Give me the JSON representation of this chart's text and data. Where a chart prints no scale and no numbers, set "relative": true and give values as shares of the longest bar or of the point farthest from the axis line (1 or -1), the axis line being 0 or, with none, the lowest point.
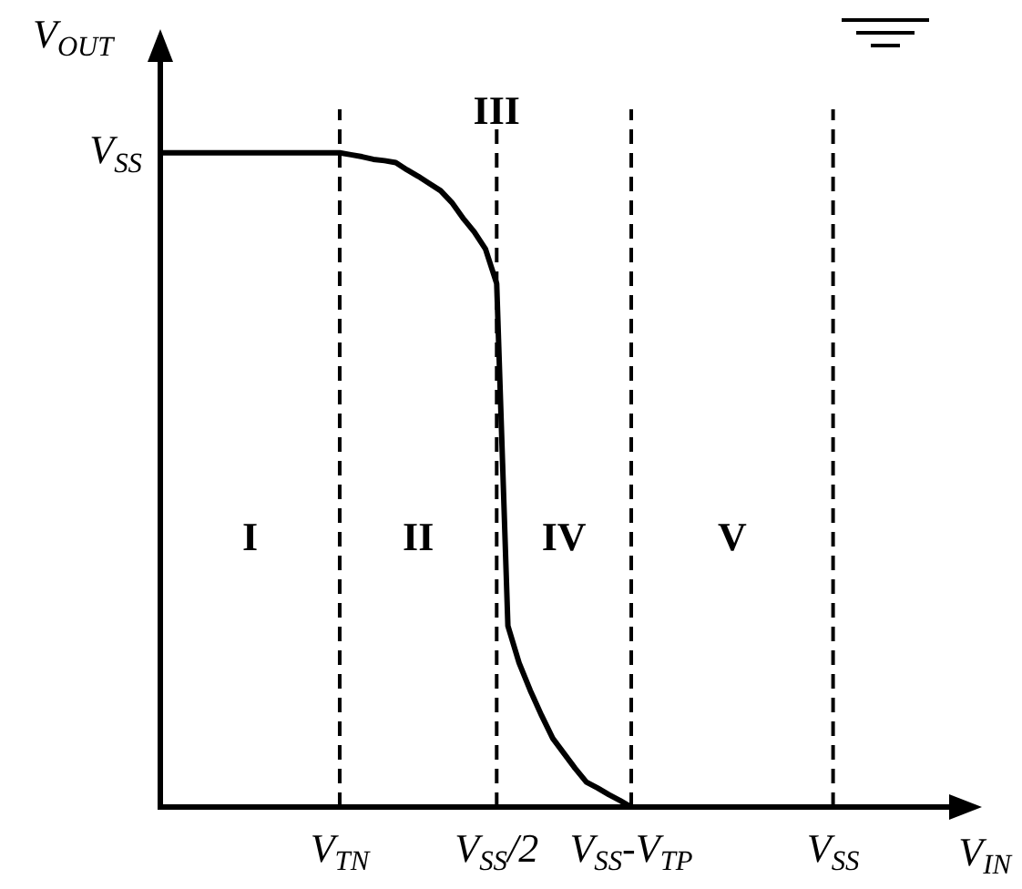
{
  "chart_data": {
    "type": "line",
    "relative": true,
    "xlabel": "V$_{IN}$",
    "ylabel": "V$_{OUT}$",
    "categories": [
      null,
      null,
      null,
      null,
      null,
      null,
      null,
      null,
      null,
      null,
      null,
      null,
      null,
      null,
      null,
      null,
      "V$_{TN}$",
      null,
      null,
      null,
      null,
      null,
      null,
      null,
      null,
      null,
      null,
      null,
      null,
      null,
      "V$_{SS}$/2",
      null,
      null,
      null,
      null,
      null,
      null,
      null,
      null,
      null,
      null,
      null,
      "V$_{SS}$-V$_{TP}$",
      null,
      null,
      null,
      null,
      null,
      null,
      null,
      null,
      null,
      null,
      null,
      null,
      null,
      null,
      null,
      null,
      null,
      "V$_{SS}$",
      null,
      null,
      null,
      null,
      null,
      null,
      null,
      null,
      null,
      null,
      null
    ],
    "values": [
      1,
      1,
      1,
      1,
      1,
      1,
      1,
      1,
      1,
      1,
      1,
      1,
      1,
      1,
      1,
      1,
      1,
      0.997,
      0.994,
      0.99,
      0.988,
      0.985,
      0.974,
      0.964,
      0.953,
      0.942,
      0.924,
      0.9,
      0.879,
      0.853,
      0.8,
      0.277,
      0.22,
      0.178,
      0.14,
      0.105,
      0.082,
      0.059,
      0.038,
      0.029,
      0.019,
      0.01,
      0,
      0,
      0,
      0,
      0,
      0,
      0,
      0,
      0,
      0,
      0,
      0,
      0,
      0,
      0,
      0,
      0,
      0,
      0,
      null,
      null,
      null,
      null,
      null,
      null,
      null,
      null,
      null,
      null,
      null
    ],
    "color": "#000000",
    "marker": "none",
    "line_style": "solid",
    "ref_lines": [
      {
        "axis": "x",
        "value": "V$_{TN}$",
        "line_style": "dashed"
      },
      {
        "axis": "x",
        "value": "V$_{SS}$/2",
        "line_style": "dashed"
      },
      {
        "axis": "x",
        "value": "V$_{SS}$-V$_{TP}$",
        "line_style": "dashed"
      },
      {
        "axis": "x",
        "value": "V$_{SS}$",
        "line_style": "dashed"
      }
    ],
    "annotations": [
      "V$_{SS}$",
      "I",
      "II",
      {
        "text": "III",
        "x": "V$_{SS}$/2",
        "y": 1.06
      },
      "IV",
      "V"
    ]
  }
}
